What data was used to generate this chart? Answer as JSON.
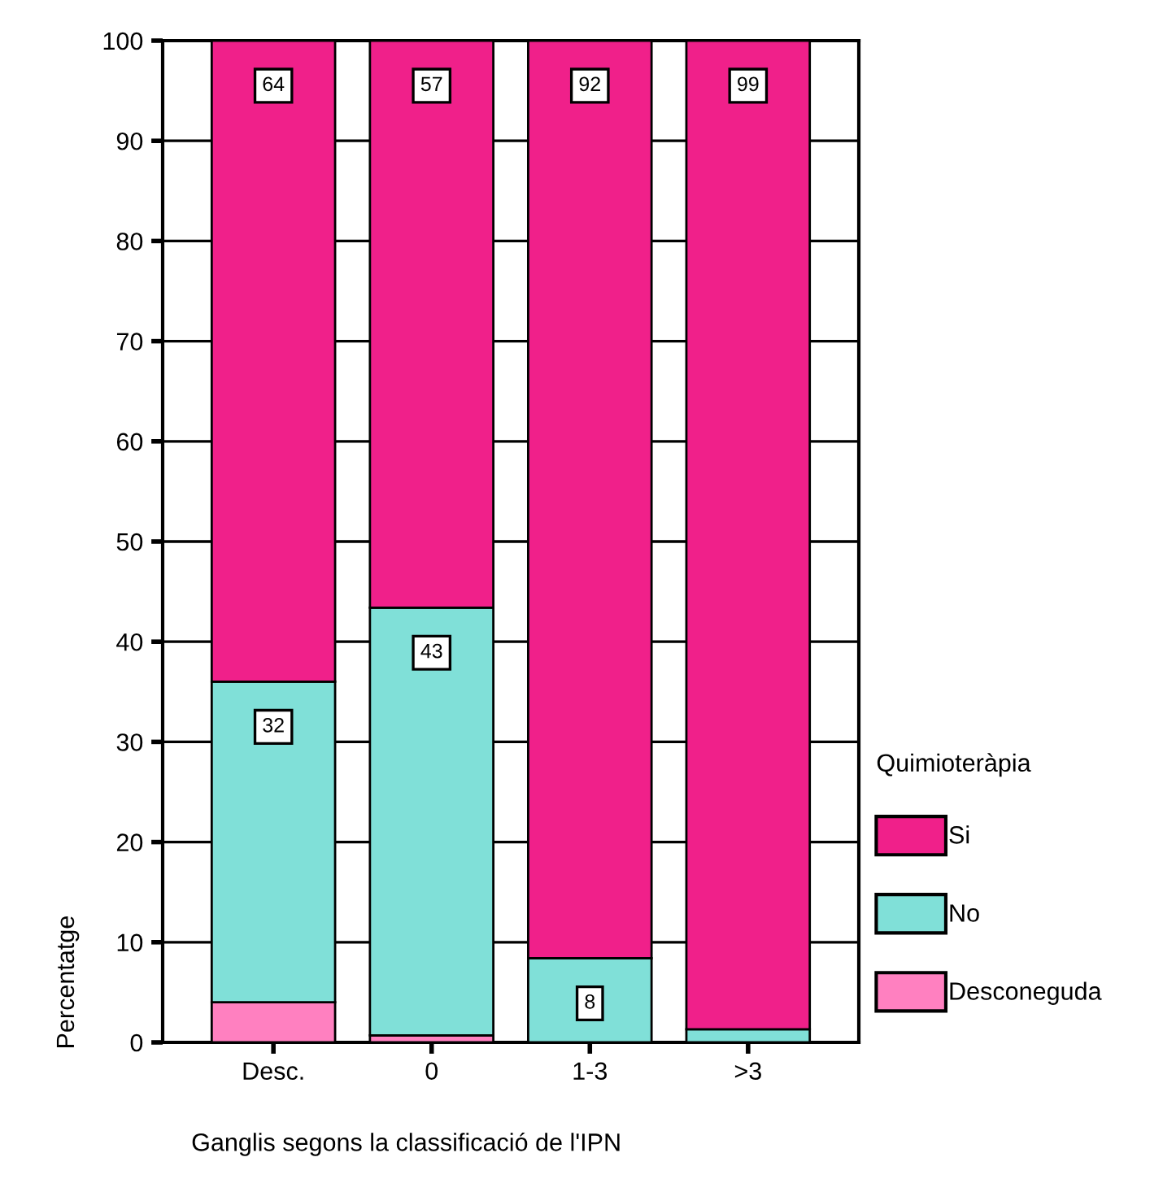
{
  "chart_data": {
    "type": "bar",
    "stacked": true,
    "xlabel": "Ganglis segons la classificació de l'IPN",
    "ylabel": "Percentatge",
    "legend_title": "Quimioteràpia",
    "categories": [
      "Desc.",
      "0",
      "1-3",
      ">3"
    ],
    "series": [
      {
        "name": "Desconeguda",
        "color": "#ff80c0",
        "values": [
          4,
          0.7,
          0,
          0
        ],
        "value_labels": [
          null,
          null,
          null,
          null
        ]
      },
      {
        "name": "No",
        "color": "#80e0d8",
        "values": [
          32,
          42.7,
          8.4,
          1.3
        ],
        "value_labels": [
          "32",
          "43",
          "8",
          null
        ]
      },
      {
        "name": "Si",
        "color": "#f0208a",
        "values": [
          64,
          56.6,
          91.6,
          98.7
        ],
        "value_labels": [
          "64",
          "57",
          "92",
          "99"
        ]
      }
    ],
    "ylim": [
      0,
      100
    ],
    "yticks": [
      0,
      10,
      20,
      30,
      40,
      50,
      60,
      70,
      80,
      90,
      100
    ],
    "grid": "y",
    "legend": "right"
  }
}
